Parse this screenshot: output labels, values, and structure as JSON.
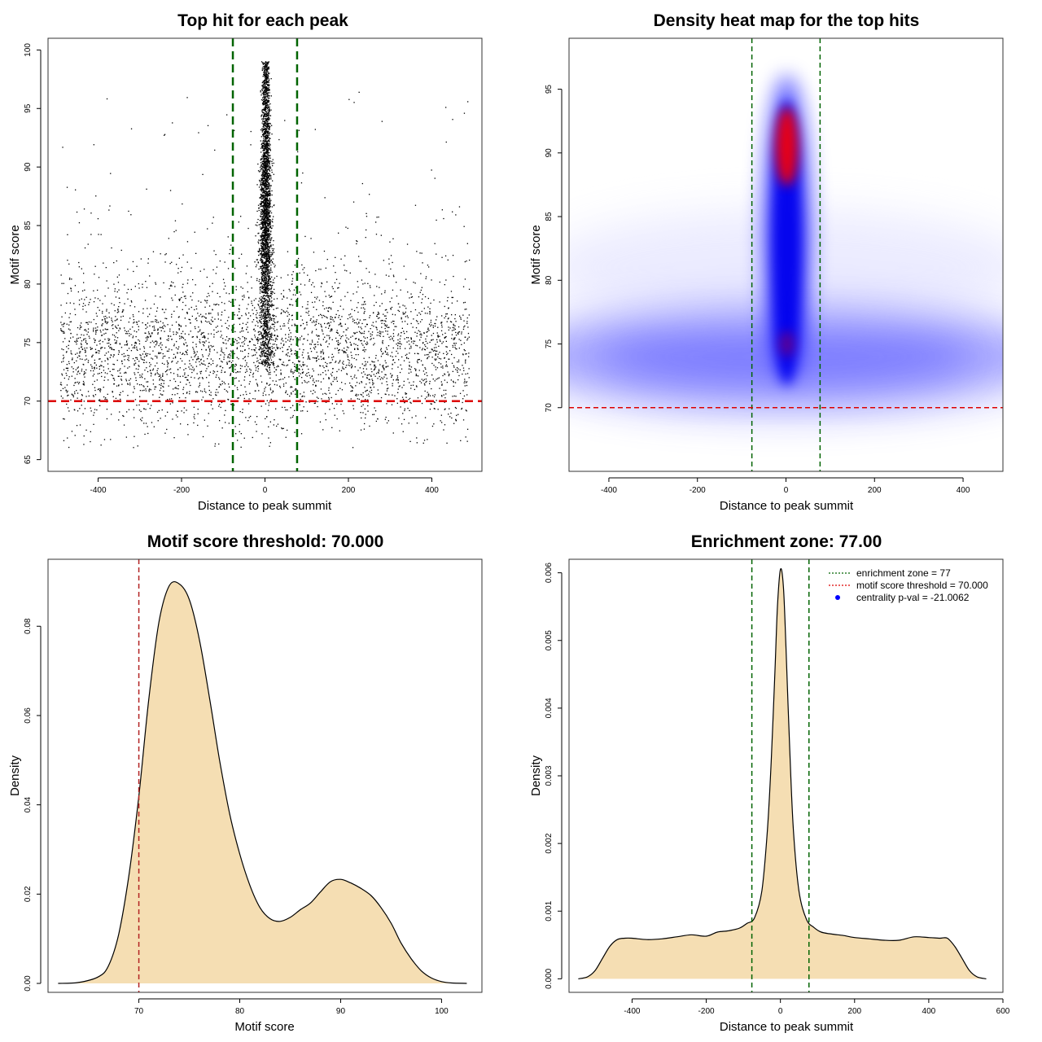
{
  "chart_data": [
    {
      "type": "scatter",
      "title": "Top hit for each peak",
      "xlabel": "Distance to peak summit",
      "ylabel": "Motif score",
      "xlim": [
        -520,
        520
      ],
      "ylim": [
        64,
        101
      ],
      "xticks": [
        -400,
        -200,
        0,
        200,
        400
      ],
      "yticks": [
        65,
        70,
        75,
        80,
        85,
        90,
        95,
        100
      ],
      "point_description": "About 6000 points: background band uniform over x in [-490, 490] with scores mostly 67-80 (peak near 73); a dense central column near x = 0 with scores 73-99; a few sparse outliers up to 97.",
      "vlines": [
        -77,
        77
      ],
      "hline": 70,
      "vline_color": "#006400",
      "hline_color": "#dd0000",
      "grid": false
    },
    {
      "type": "heatmap",
      "title": "Density heat map for the top hits",
      "xlabel": "Distance to peak summit",
      "ylabel": "Motif score",
      "xlim": [
        -490,
        490
      ],
      "ylim": [
        65,
        99
      ],
      "xticks": [
        -400,
        -200,
        0,
        200,
        400
      ],
      "yticks": [
        70,
        75,
        80,
        85,
        90,
        95
      ],
      "density_description": "Broad low-density band across all x at scores 71-77; strong central ridge at x near 0 from 70 to 97 with the maximum (red) near score 90 and a secondary hot spot near 75.",
      "color_scale": [
        "#ffffff",
        "#0000ff",
        "#ff0000"
      ],
      "vlines": [
        -77,
        77
      ],
      "hline": 70,
      "vline_color": "#006400",
      "hline_color": "#dd0000"
    },
    {
      "type": "area",
      "title": "Motif score threshold: 70.000",
      "xlabel": "Motif score",
      "ylabel": "Density",
      "xlim": [
        61,
        104
      ],
      "ylim": [
        -0.002,
        0.095
      ],
      "xticks": [
        70,
        80,
        90,
        100
      ],
      "yticks": [
        0.0,
        0.02,
        0.04,
        0.06,
        0.08
      ],
      "ytick_labels": [
        "0.00",
        "0.02",
        "0.04",
        "0.06",
        "0.08"
      ],
      "x": [
        62,
        64,
        66,
        67,
        68,
        69,
        70,
        71,
        72,
        73,
        74,
        75,
        76,
        77,
        78,
        79,
        80,
        81,
        82,
        83,
        84,
        85,
        86,
        87,
        88,
        89,
        90,
        91,
        92,
        93,
        94,
        95,
        96,
        97,
        98,
        99,
        100,
        101,
        102.5
      ],
      "values": [
        0.0,
        0.0002,
        0.0015,
        0.004,
        0.011,
        0.024,
        0.042,
        0.064,
        0.081,
        0.089,
        0.0895,
        0.086,
        0.077,
        0.064,
        0.05,
        0.038,
        0.029,
        0.022,
        0.017,
        0.0145,
        0.0139,
        0.0148,
        0.0165,
        0.018,
        0.0205,
        0.0228,
        0.0233,
        0.0225,
        0.0213,
        0.0197,
        0.017,
        0.0135,
        0.009,
        0.0055,
        0.0028,
        0.0012,
        0.0004,
        0.0001,
        0.0
      ],
      "vline": 70,
      "vline_color": "#b22222",
      "fill_color": "#f5deb3"
    },
    {
      "type": "area",
      "title": "Enrichment zone: 77.00",
      "xlabel": "Distance to peak summit",
      "ylabel": "Density",
      "xlim": [
        -570,
        600
      ],
      "ylim": [
        -0.0002,
        0.0062
      ],
      "xticks": [
        -400,
        -200,
        0,
        200,
        400,
        600
      ],
      "yticks": [
        0.0,
        0.001,
        0.002,
        0.003,
        0.004,
        0.005,
        0.006
      ],
      "ytick_labels": [
        "0.000",
        "0.001",
        "0.002",
        "0.003",
        "0.004",
        "0.005",
        "0.006"
      ],
      "x": [
        -545,
        -520,
        -500,
        -480,
        -460,
        -440,
        -420,
        -400,
        -360,
        -320,
        -280,
        -240,
        -200,
        -170,
        -140,
        -110,
        -90,
        -70,
        -50,
        -35,
        -25,
        -15,
        -8,
        0,
        8,
        15,
        25,
        35,
        50,
        70,
        90,
        110,
        140,
        170,
        200,
        240,
        280,
        320,
        360,
        400,
        430,
        450,
        470,
        490,
        510,
        530,
        555
      ],
      "values": [
        0.0,
        3e-05,
        0.00012,
        0.0003,
        0.00048,
        0.00058,
        0.0006,
        0.0006,
        0.00058,
        0.00059,
        0.00062,
        0.00065,
        0.00063,
        0.00069,
        0.00071,
        0.00075,
        0.00082,
        0.0009,
        0.0013,
        0.0022,
        0.0032,
        0.0045,
        0.0055,
        0.00605,
        0.0058,
        0.0049,
        0.0034,
        0.0022,
        0.0013,
        0.00088,
        0.00076,
        0.00069,
        0.00066,
        0.00064,
        0.00061,
        0.00059,
        0.00057,
        0.00057,
        0.00062,
        0.00061,
        0.0006,
        0.0006,
        0.00048,
        0.0003,
        0.00012,
        3e-05,
        0.0
      ],
      "vlines": [
        -77,
        77
      ],
      "vline_color": "#006400",
      "fill_color": "#f5deb3",
      "legend": {
        "position": "top-right",
        "entries": [
          {
            "label": "enrichment zone = 77",
            "style": "dotted-line",
            "color": "#006400"
          },
          {
            "label": "motif score threshold = 70.000",
            "style": "dotted-line",
            "color": "#dd0000"
          },
          {
            "label": "centrality p-val = -21.0062",
            "style": "point",
            "color": "#0000ff"
          }
        ]
      }
    }
  ]
}
